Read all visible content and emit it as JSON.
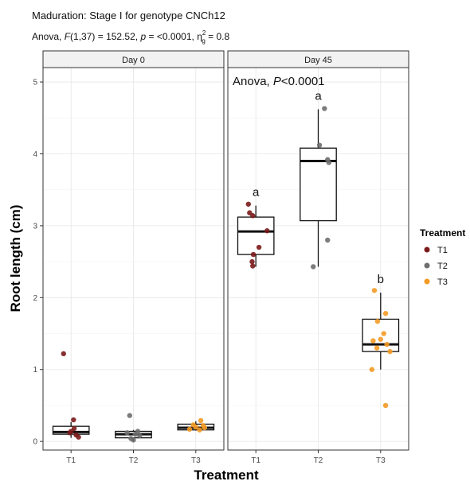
{
  "chart_data": {
    "type": "boxplot",
    "title": "Maduration: Stage I for genotype CNCh12",
    "subtitle": {
      "prefix": "Anova, ",
      "f_label": "F",
      "f_args": "(1,37) = 152.52, ",
      "p_label": "p",
      "p_value": " = <0.0001, ",
      "eta": "η",
      "eta_sup": "2",
      "eta_sub": "g",
      "eta_value": " = 0.8"
    },
    "xlabel": "Treatment",
    "ylabel": "Root length (cm)",
    "ylim": [
      -0.12,
      5.2
    ],
    "yticks": [
      "0",
      "1",
      "2",
      "3",
      "4",
      "5"
    ],
    "categories": [
      "T1",
      "T2",
      "T3"
    ],
    "grid": true,
    "legend": {
      "title": "Treatment",
      "position": "right",
      "items": [
        {
          "label": "T1",
          "color": "#7b1a1a"
        },
        {
          "label": "T2",
          "color": "#6e6e6e"
        },
        {
          "label": "T3",
          "color": "#f49a24"
        }
      ]
    },
    "panels": [
      {
        "label": "Day 0",
        "annotation_prefix": "",
        "annotation_p": "",
        "annotation_value": "",
        "groups": [
          {
            "category": "T1",
            "letter": "",
            "box": {
              "min": 0.05,
              "q1": 0.1,
              "median": 0.13,
              "q3": 0.21,
              "max": 0.27
            },
            "points": [
              [
                -0.12,
                1.22
              ],
              [
                0.04,
                0.3
              ],
              [
                -0.02,
                0.12
              ],
              [
                0.08,
                0.09
              ],
              [
                0.12,
                0.06
              ],
              [
                0.0,
                0.14
              ],
              [
                0.05,
                0.18
              ]
            ]
          },
          {
            "category": "T2",
            "letter": "",
            "box": {
              "min": 0.0,
              "q1": 0.05,
              "median": 0.1,
              "q3": 0.14,
              "max": 0.16
            },
            "points": [
              [
                -0.06,
                0.36
              ],
              [
                -0.04,
                0.04
              ],
              [
                0.03,
                0.1
              ],
              [
                0.07,
                0.14
              ],
              [
                -0.1,
                0.12
              ],
              [
                0.1,
                0.08
              ],
              [
                0.0,
                0.02
              ]
            ]
          },
          {
            "category": "T3",
            "letter": "",
            "box": {
              "min": 0.15,
              "q1": 0.16,
              "median": 0.19,
              "q3": 0.24,
              "max": 0.28
            },
            "points": [
              [
                0.08,
                0.29
              ],
              [
                -0.1,
                0.17
              ],
              [
                0.0,
                0.2
              ],
              [
                0.12,
                0.22
              ],
              [
                -0.04,
                0.23
              ],
              [
                0.06,
                0.16
              ],
              [
                0.14,
                0.19
              ]
            ]
          }
        ]
      },
      {
        "label": "Day 45",
        "annotation_prefix": "Anova, ",
        "annotation_p": "P",
        "annotation_value": "<0.0001",
        "groups": [
          {
            "category": "T1",
            "letter": "a",
            "box": {
              "min": 2.43,
              "q1": 2.6,
              "median": 2.92,
              "q3": 3.12,
              "max": 3.28
            },
            "points": [
              [
                -0.12,
                3.3
              ],
              [
                -0.1,
                3.18
              ],
              [
                -0.05,
                3.14
              ],
              [
                0.18,
                2.93
              ],
              [
                0.05,
                2.7
              ],
              [
                -0.04,
                2.6
              ],
              [
                -0.06,
                2.5
              ],
              [
                -0.05,
                2.44
              ]
            ]
          },
          {
            "category": "T2",
            "letter": "a",
            "box": {
              "min": 2.43,
              "q1": 3.07,
              "median": 3.9,
              "q3": 4.08,
              "max": 4.62
            },
            "points": [
              [
                0.1,
                4.63
              ],
              [
                0.02,
                4.12
              ],
              [
                0.15,
                3.92
              ],
              [
                0.17,
                3.88
              ],
              [
                0.15,
                2.8
              ],
              [
                -0.08,
                2.43
              ]
            ]
          },
          {
            "category": "T3",
            "letter": "b",
            "box": {
              "min": 1.0,
              "q1": 1.25,
              "median": 1.35,
              "q3": 1.7,
              "max": 2.07
            },
            "points": [
              [
                -0.1,
                2.1
              ],
              [
                0.08,
                1.78
              ],
              [
                -0.05,
                1.67
              ],
              [
                0.05,
                1.5
              ],
              [
                -0.12,
                1.4
              ],
              [
                0.1,
                1.35
              ],
              [
                -0.06,
                1.3
              ],
              [
                0.15,
                1.25
              ],
              [
                -0.14,
                1.0
              ],
              [
                0.08,
                0.5
              ],
              [
                0.0,
                1.42
              ]
            ]
          }
        ]
      }
    ]
  }
}
